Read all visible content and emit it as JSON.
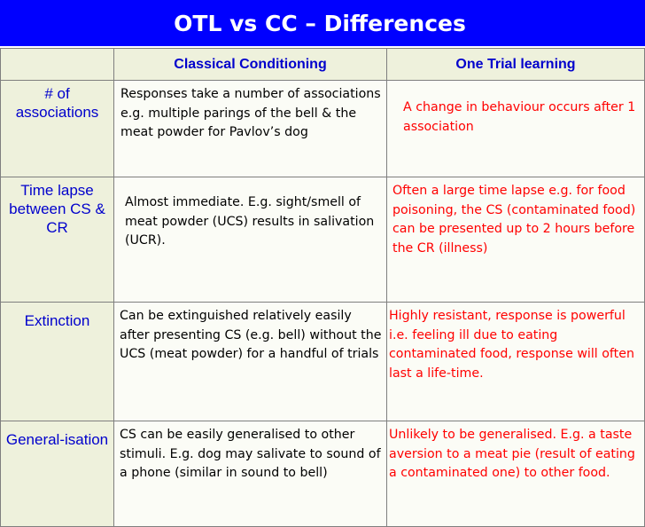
{
  "title": "OTL vs CC – Differences",
  "colors": {
    "title_bar": "#0000ff",
    "header_text": "#0000cc",
    "otl_text": "#ff0000",
    "cell_fill": "#eef1dc"
  },
  "table": {
    "headers": [
      "",
      "Classical Conditioning",
      "One Trial learning"
    ],
    "rows": [
      {
        "label": "# of associations",
        "cc": "Responses take a number of associations e.g. multiple parings of the bell & the meat powder for Pavlov’s dog",
        "otl": "A change in behaviour occurs after 1 association"
      },
      {
        "label": "Time lapse between CS & CR",
        "cc": "Almost immediate. E.g. sight/smell of meat powder (UCS) results in salivation (UCR).",
        "otl": "Often a large time lapse e.g. for food poisoning, the CS (contaminated food) can be presented up to 2 hours before the CR (illness)"
      },
      {
        "label": "Extinction",
        "cc": "Can be extinguished relatively easily after presenting CS (e.g. bell) without the UCS (meat powder) for a handful of trials",
        "otl": "Highly resistant, response is powerful i.e. feeling ill due to eating contaminated food, response will often last a life-time."
      },
      {
        "label": "General-isation",
        "cc": "CS can be easily generalised to other stimuli. E.g. dog may salivate to sound of a phone (similar in sound to bell)",
        "otl": "Unlikely to be generalised. E.g. a taste aversion to a meat pie (result of eating a contaminated one) to other food."
      }
    ]
  }
}
